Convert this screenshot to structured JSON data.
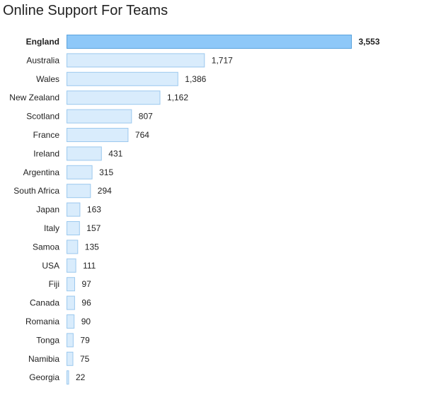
{
  "chart_data": {
    "type": "bar",
    "orientation": "horizontal",
    "title": "Online Support For Teams",
    "xlabel": "",
    "ylabel": "",
    "grid": false,
    "legend": "none",
    "highlight_category": "England",
    "categories": [
      "England",
      "Australia",
      "Wales",
      "New Zealand",
      "Scotland",
      "France",
      "Ireland",
      "Argentina",
      "South Africa",
      "Japan",
      "Italy",
      "Samoa",
      "USA",
      "Fiji",
      "Canada",
      "Romania",
      "Tonga",
      "Namibia",
      "Georgia"
    ],
    "values": [
      3553,
      1717,
      1386,
      1162,
      807,
      764,
      431,
      315,
      294,
      163,
      157,
      135,
      111,
      97,
      96,
      90,
      79,
      75,
      22
    ],
    "value_labels": [
      "3,553",
      "1,717",
      "1,386",
      "1,162",
      "807",
      "764",
      "431",
      "315",
      "294",
      "163",
      "157",
      "135",
      "111",
      "97",
      "96",
      "90",
      "79",
      "75",
      "22"
    ],
    "colors": {
      "highlight_fill": "#8ec8f8",
      "highlight_stroke": "#5aa3dd",
      "bar_fill": "#d9ecfc",
      "bar_stroke": "#9cc9ee"
    }
  }
}
